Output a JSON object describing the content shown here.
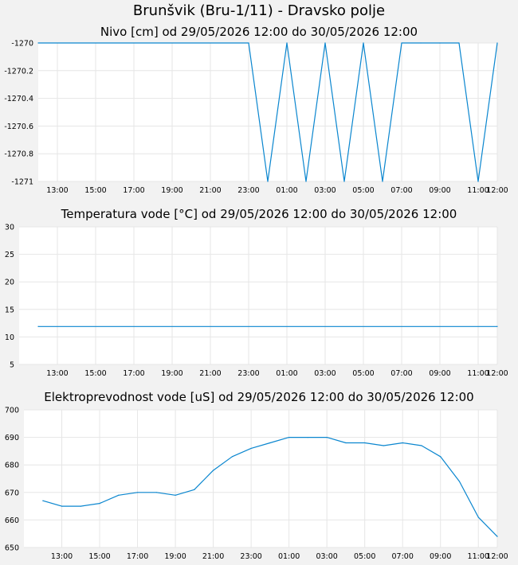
{
  "page": {
    "title": "Brunšvik (Bru-1/11) - Dravsko polje"
  },
  "colors": {
    "line": "#0a86cf",
    "grid": "#e6e6e6",
    "plot_bg": "#ffffff"
  },
  "chart_data": [
    {
      "type": "line",
      "title": "Nivo [cm] od 29/05/2026 12:00 do 30/05/2026 12:00",
      "xlabel": "",
      "ylabel": "",
      "x_unit": "hour from 29/05/2026 00:00",
      "xlim": [
        11.3,
        12.5
      ],
      "xlim_note": "",
      "ylim": [
        -1271,
        -1270
      ],
      "yticks": [
        -1270,
        -1270.2,
        -1270.4,
        -1270.6,
        -1270.8,
        -1271
      ],
      "ytick_labels": [
        "-1270",
        "-1270.2",
        "-1270.4",
        "-1270.6",
        "-1270.8",
        "-1271"
      ],
      "xticks": [
        13,
        15,
        17,
        19,
        21,
        23,
        25,
        27,
        29,
        31,
        33,
        35,
        36
      ],
      "xtick_labels": [
        "13:00",
        "15:00",
        "17:00",
        "19:00",
        "21:00",
        "23:00",
        "01:00",
        "03:00",
        "05:00",
        "07:00",
        "09:00",
        "11:00",
        "12:00"
      ],
      "grid": true,
      "x": [
        12,
        23.0,
        24.0,
        25.0,
        26.0,
        27.0,
        28.0,
        29.0,
        30.0,
        31.0,
        32.0,
        33.0,
        34.0,
        35.0,
        36.0
      ],
      "values": [
        -1270,
        -1270,
        -1271,
        -1270,
        -1271,
        -1270,
        -1271,
        -1270,
        -1271,
        -1270,
        -1270,
        -1270,
        -1270,
        -1271,
        -1270
      ]
    },
    {
      "type": "line",
      "title": "Temperatura vode [°C] od 29/05/2026 12:00 do 30/05/2026 12:00",
      "xlabel": "",
      "ylabel": "",
      "ylim": [
        5,
        30
      ],
      "yticks": [
        5,
        10,
        15,
        20,
        25,
        30
      ],
      "ytick_labels": [
        "5",
        "10",
        "15",
        "20",
        "25",
        "30"
      ],
      "xticks": [
        13,
        15,
        17,
        19,
        21,
        23,
        25,
        27,
        29,
        31,
        33,
        35,
        36
      ],
      "xtick_labels": [
        "13:00",
        "15:00",
        "17:00",
        "19:00",
        "21:00",
        "23:00",
        "01:00",
        "03:00",
        "05:00",
        "07:00",
        "09:00",
        "11:00",
        "12:00"
      ],
      "grid": true,
      "x": [
        12,
        36
      ],
      "values": [
        11.9,
        11.9
      ]
    },
    {
      "type": "line",
      "title": "Elektroprevodnost vode [uS] od 29/05/2026 12:00 do 30/05/2026 12:00",
      "xlabel": "",
      "ylabel": "",
      "ylim": [
        650,
        700
      ],
      "yticks": [
        650,
        660,
        670,
        680,
        690,
        700
      ],
      "ytick_labels": [
        "650",
        "660",
        "670",
        "680",
        "690",
        "700"
      ],
      "xticks": [
        13,
        15,
        17,
        19,
        21,
        23,
        25,
        27,
        29,
        31,
        33,
        35,
        36
      ],
      "xtick_labels": [
        "13:00",
        "15:00",
        "17:00",
        "19:00",
        "21:00",
        "23:00",
        "01:00",
        "03:00",
        "05:00",
        "07:00",
        "09:00",
        "11:00",
        "12:00"
      ],
      "grid": true,
      "x": [
        12,
        13,
        14,
        15,
        16,
        17,
        18,
        19,
        20,
        21,
        22,
        23,
        24,
        25,
        26,
        27,
        28,
        29,
        30,
        31,
        32,
        33,
        34,
        35,
        36
      ],
      "values": [
        667,
        665,
        665,
        666,
        669,
        670,
        670,
        669,
        671,
        678,
        683,
        686,
        688,
        690,
        690,
        690,
        688,
        688,
        687,
        688,
        687,
        683,
        674,
        661,
        654
      ]
    }
  ]
}
